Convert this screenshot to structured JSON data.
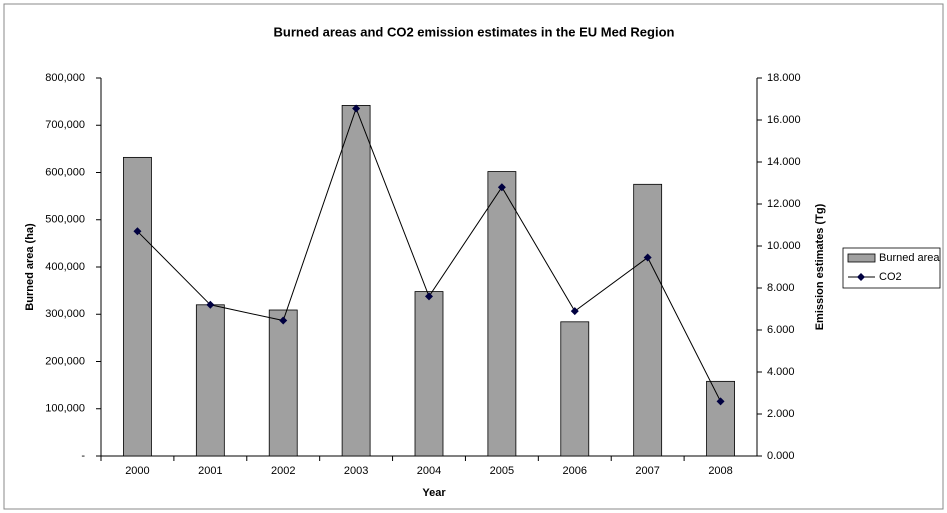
{
  "chart_data": {
    "type": "bar",
    "title": "Burned areas and CO2 emission estimates in the EU Med Region",
    "x_label": "Year",
    "y_label": "Burned area (ha)",
    "y2_label": "Emission estimates (Tg)",
    "categories": [
      "2000",
      "2001",
      "2002",
      "2003",
      "2004",
      "2005",
      "2006",
      "2007",
      "2008"
    ],
    "series": [
      {
        "name": "Burned area",
        "type": "bar",
        "color": "#a0a0a0",
        "values": [
          632000,
          320000,
          309000,
          742000,
          348000,
          602000,
          284000,
          575000,
          158000
        ]
      },
      {
        "name": "CO2",
        "type": "line",
        "axis": "y2",
        "color": "#000040",
        "values": [
          10.7,
          7.2,
          6.45,
          16.55,
          7.6,
          12.8,
          6.9,
          9.45,
          2.6
        ]
      }
    ],
    "ylim": [
      0,
      800000
    ],
    "yticks": [
      {
        "value": 0,
        "label": "-"
      },
      {
        "value": 100000,
        "label": "100,000"
      },
      {
        "value": 200000,
        "label": "200,000"
      },
      {
        "value": 300000,
        "label": "300,000"
      },
      {
        "value": 400000,
        "label": "400,000"
      },
      {
        "value": 500000,
        "label": "500,000"
      },
      {
        "value": 600000,
        "label": "600,000"
      },
      {
        "value": 700000,
        "label": "700,000"
      },
      {
        "value": 800000,
        "label": "800,000"
      }
    ],
    "y2lim": [
      0,
      18
    ],
    "y2ticks": [
      {
        "value": 0,
        "label": "0.000"
      },
      {
        "value": 2,
        "label": "2.000"
      },
      {
        "value": 4,
        "label": "4.000"
      },
      {
        "value": 6,
        "label": "6.000"
      },
      {
        "value": 8,
        "label": "8.000"
      },
      {
        "value": 10,
        "label": "10.000"
      },
      {
        "value": 12,
        "label": "12.000"
      },
      {
        "value": 14,
        "label": "14.000"
      },
      {
        "value": 16,
        "label": "16.000"
      },
      {
        "value": 18,
        "label": "18.000"
      }
    ],
    "legend": "right"
  }
}
